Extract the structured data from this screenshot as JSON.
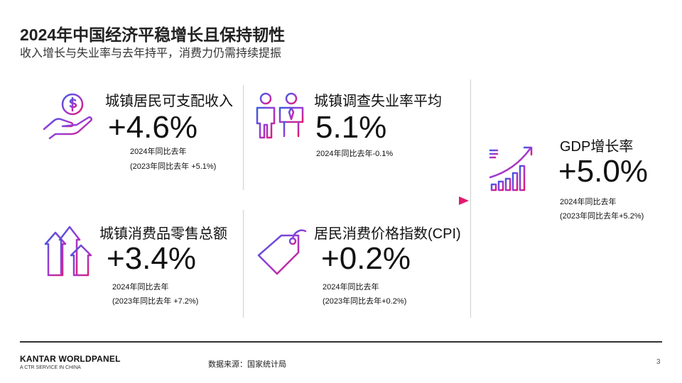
{
  "header": {
    "title": "2024年中国经济平稳增长且保持韧性",
    "subtitle": "收入增长与失业率与去年持平，消费力仍需持续提振"
  },
  "metrics": {
    "income": {
      "icon": "hand-coin-icon",
      "label": "城镇居民可支配收入",
      "value": "+4.6%",
      "note1": "2024年同比去年",
      "note2": "(2023年同比去年 +5.1%)"
    },
    "unemployment": {
      "icon": "people-survey-icon",
      "label": "城镇调查失业率平均",
      "value": "5.1%",
      "note1": "2024年同比去年-0.1%"
    },
    "retail": {
      "icon": "arrows-up-icon",
      "label": "城镇消费品零售总额",
      "value": "+3.4%",
      "note1": "2024年同比去年",
      "note2": "(2023年同比去年 +7.2%)"
    },
    "cpi": {
      "icon": "price-tag-icon",
      "label": "居民消费价格指数(CPI)",
      "value": "+0.2%",
      "note1": "2024年同比去年",
      "note2": "(2023年同比去年+0.2%)"
    },
    "gdp": {
      "icon": "growth-chart-icon",
      "label": "GDP增长率",
      "value": "+5.0%",
      "note1": "2024年同比去年",
      "note2": "(2023年同比去年+5.2%)"
    }
  },
  "colors": {
    "accent_start": "#2f6fde",
    "accent_mid": "#9b3bd6",
    "accent_end": "#e5196f"
  },
  "footer": {
    "brand": "KANTAR WORLDPANEL",
    "brand_sub": "A CTR SERVICE IN CHINA",
    "source": "数据来源：国家统计局",
    "page": "3"
  }
}
